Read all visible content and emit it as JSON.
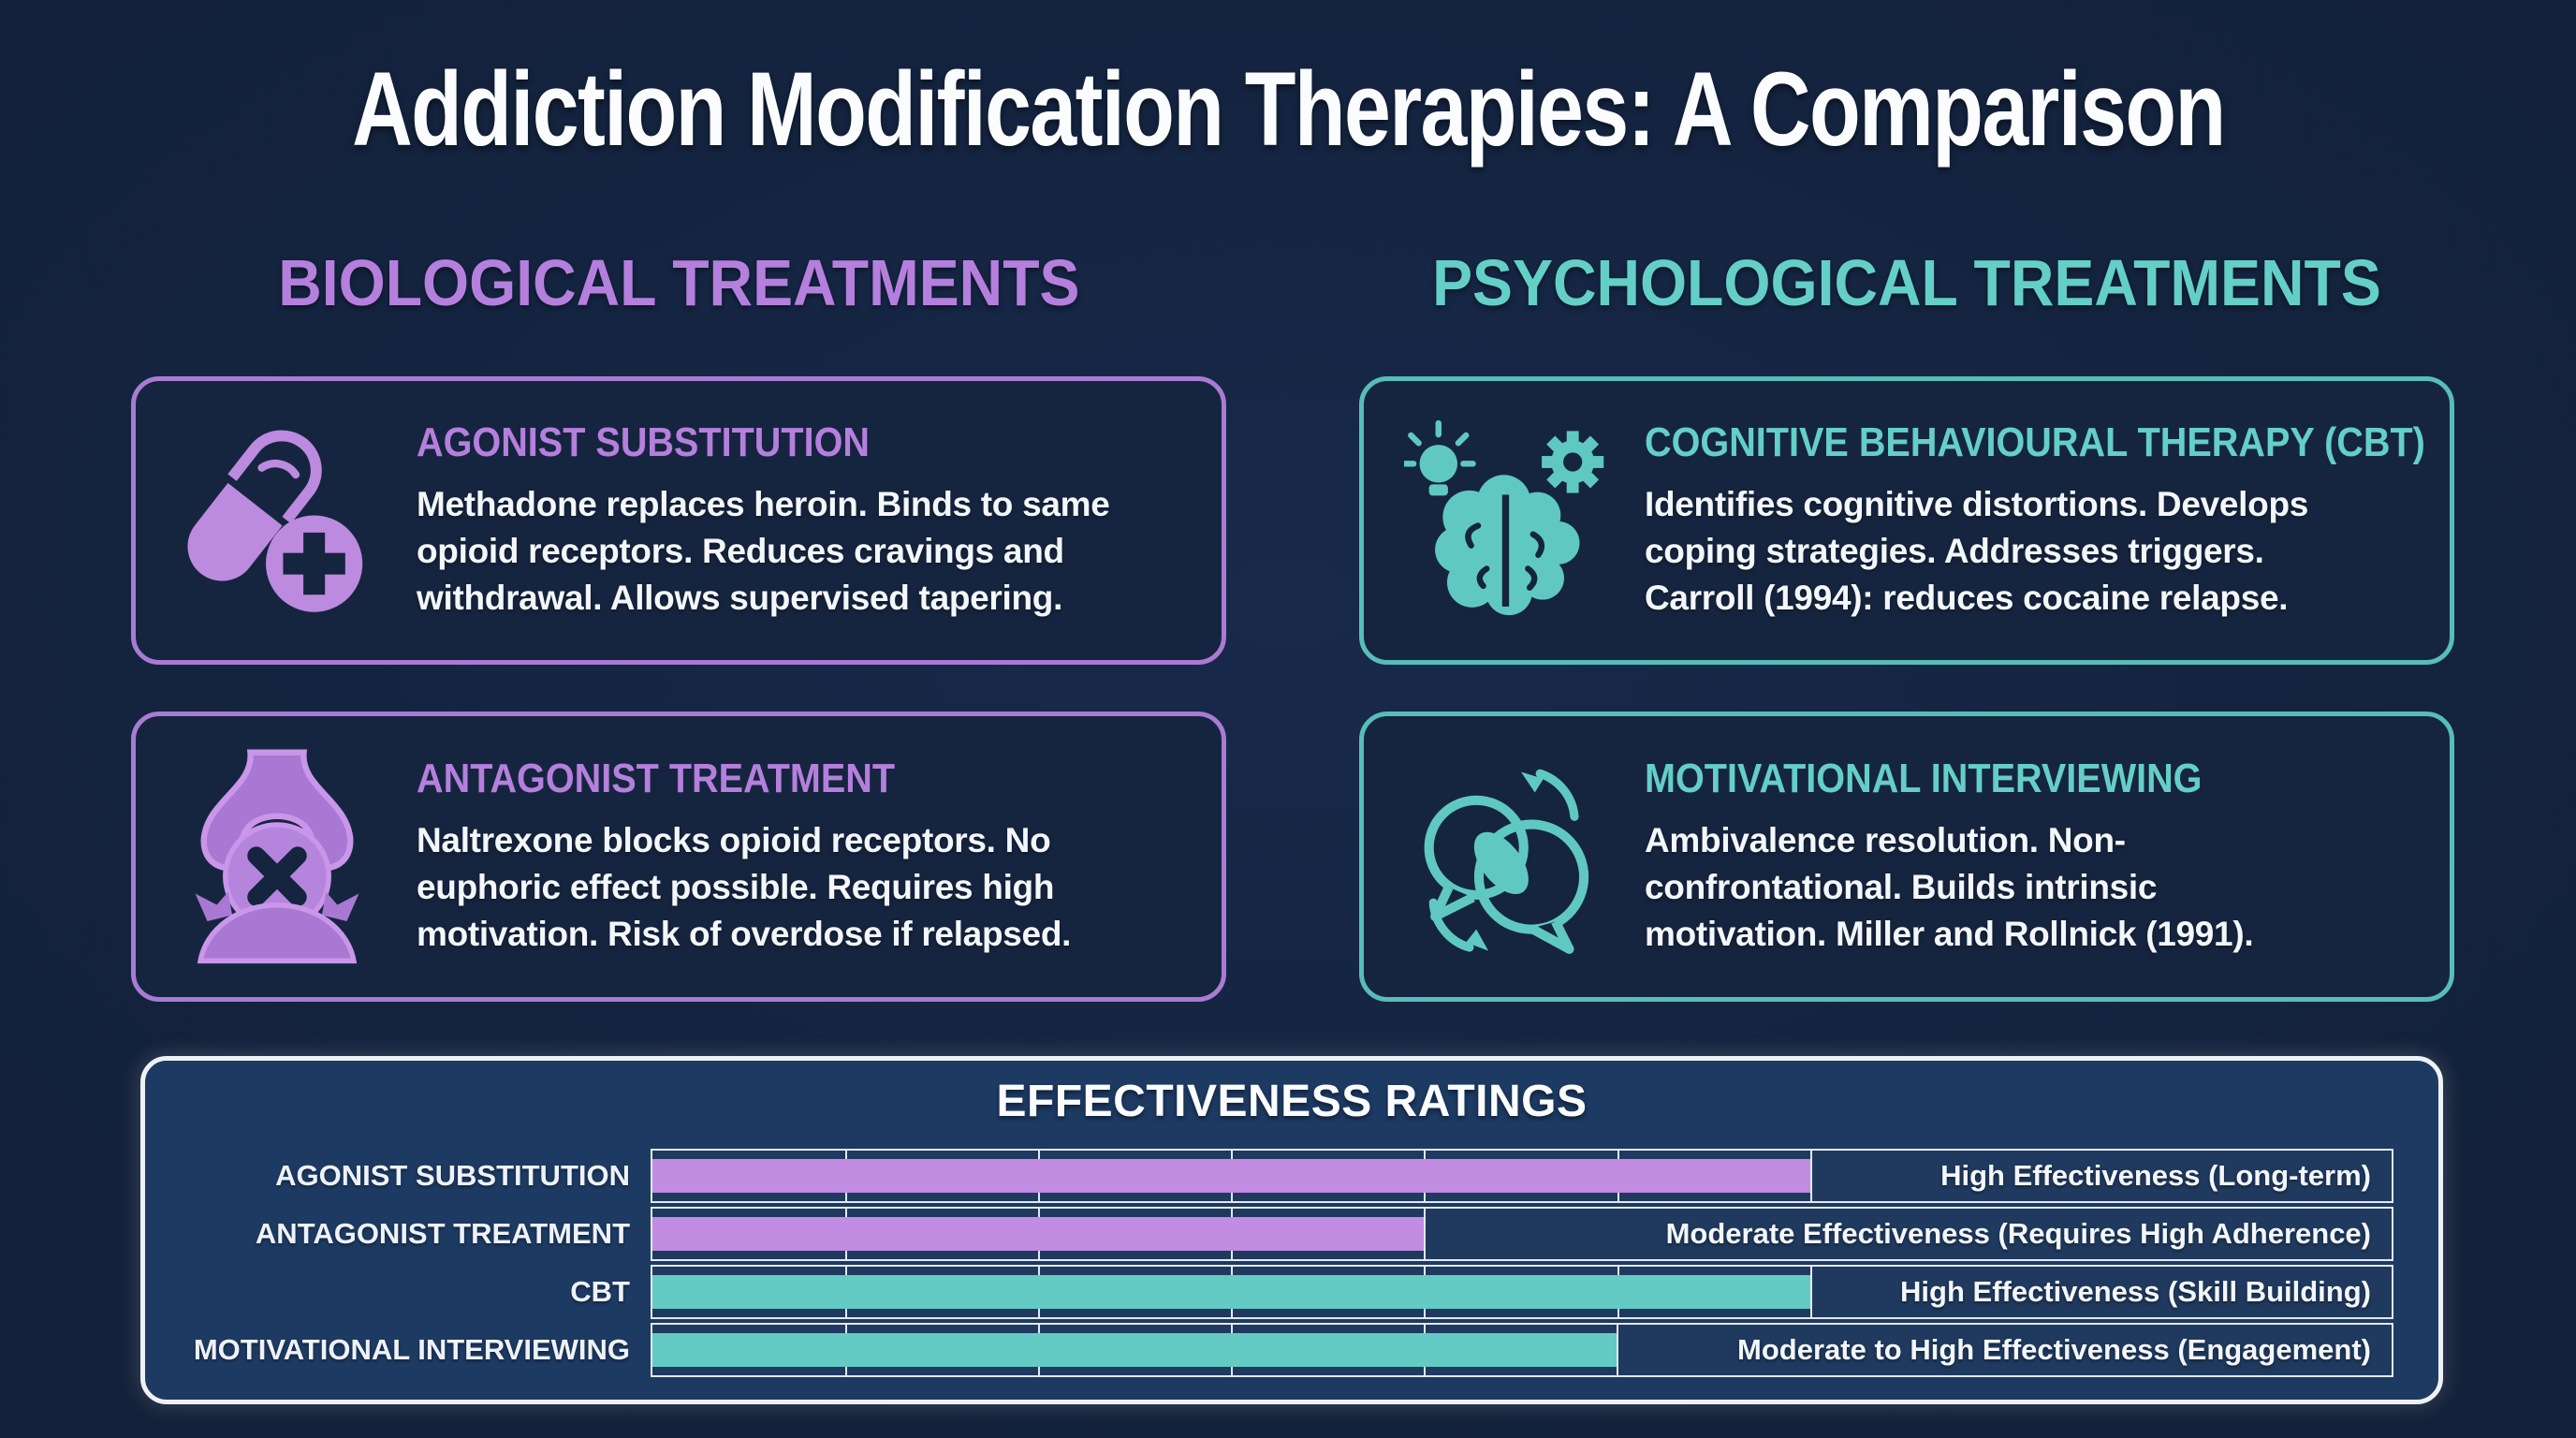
{
  "page": {
    "title": "Addiction Modification Therapies: A Comparison"
  },
  "sections": {
    "biological": {
      "header": "BIOLOGICAL TREATMENTS",
      "accent": "#b57fdd"
    },
    "psychological": {
      "header": "PSYCHOLOGICAL TREATMENTS",
      "accent": "#64cfc7"
    }
  },
  "cards": [
    {
      "id": "agonist",
      "section": "biological",
      "icon": "pill-plus-icon",
      "title": "AGONIST SUBSTITUTION",
      "body": "Methadone replaces heroin. Binds to same\nopioid receptors. Reduces cravings and\nwithdrawal. Allows supervised tapering."
    },
    {
      "id": "antagonist",
      "section": "biological",
      "icon": "synapse-blocked-icon",
      "title": "ANTAGONIST TREATMENT",
      "body": "Naltrexone blocks opioid receptors. No\neuphoric effect possible. Requires high\nmotivation. Risk of overdose if relapsed."
    },
    {
      "id": "cbt",
      "section": "psychological",
      "icon": "brain-gear-icon",
      "title": "COGNITIVE BEHAVIOURAL THERAPY (CBT)",
      "body": "Identifies cognitive distortions. Develops\ncoping strategies. Addresses triggers.\nCarroll (1994): reduces cocaine relapse."
    },
    {
      "id": "mi",
      "section": "psychological",
      "icon": "speech-bubbles-icon",
      "title": "MOTIVATIONAL INTERVIEWING",
      "body": "Ambivalence resolution. Non-\nconfrontational. Builds intrinsic\nmotivation. Miller and Rollnick (1991)."
    }
  ],
  "chart_data": {
    "type": "bar",
    "orientation": "horizontal",
    "title": "EFFECTIVENESS RATINGS",
    "categories": [
      "AGONIST SUBSTITUTION",
      "ANTAGONIST TREATMENT",
      "CBT",
      "MOTIVATIONAL INTERVIEWING"
    ],
    "values": [
      67,
      44,
      67,
      56
    ],
    "grid_units": {
      "total": 9,
      "values": [
        6,
        4,
        6,
        5
      ]
    },
    "bar_labels": [
      "High Effectiveness (Long-term)",
      "Moderate Effectiveness (Requires High Adherence)",
      "High Effectiveness (Skill Building)",
      "Moderate to High Effectiveness (Engagement)"
    ],
    "bar_colors": [
      "#c18ce2",
      "#c18ce2",
      "#63cbc3",
      "#63cbc3"
    ],
    "xlim": [
      0,
      100
    ],
    "grid": true,
    "legend": "none"
  },
  "colors": {
    "page-bg": "#142440",
    "card-bg": "#16253f",
    "panel-bg": "#1d3a63",
    "panel-border": "#eef1f5",
    "track-bg": "#1f3a5e",
    "grid-line": "#e3e8ef",
    "text-white": "#f3f6fa",
    "purple-accent": "#b57fdd",
    "purple-border": "#a97bd3",
    "purple-bar": "#c18ce2",
    "teal-accent": "#64cfc7",
    "teal-border": "#57bdb9",
    "teal-bar": "#63cbc3"
  }
}
